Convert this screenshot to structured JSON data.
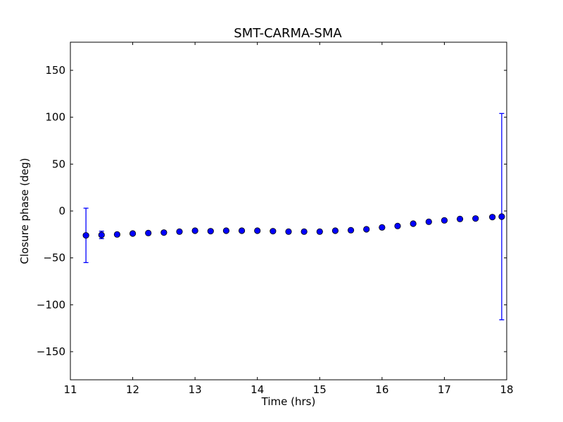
{
  "chart_data": {
    "type": "scatter",
    "title": "SMT-CARMA-SMA",
    "xlabel": "Time (hrs)",
    "ylabel": "Closure phase (deg)",
    "xlim": [
      11,
      18
    ],
    "ylim": [
      -180,
      180
    ],
    "xticks": [
      11,
      12,
      13,
      14,
      15,
      16,
      17,
      18
    ],
    "yticks": [
      -150,
      -100,
      -50,
      0,
      50,
      100,
      150
    ],
    "xtick_labels": [
      "11",
      "12",
      "13",
      "14",
      "15",
      "16",
      "17",
      "18"
    ],
    "ytick_labels": [
      "−150",
      "−100",
      "−50",
      "0",
      "50",
      "100",
      "150"
    ],
    "grid": false,
    "colors": {
      "marker": "#0000ff",
      "errorbar": "#0000ff"
    },
    "series": [
      {
        "x": [
          11.25,
          11.5,
          11.75,
          12.0,
          12.25,
          12.5,
          12.75,
          13.0,
          13.25,
          13.5,
          13.75,
          14.0,
          14.25,
          14.5,
          14.75,
          15.0,
          15.25,
          15.5,
          15.75,
          16.0,
          16.25,
          16.5,
          16.75,
          17.0,
          17.25,
          17.5,
          17.77,
          17.92
        ],
        "y": [
          -26,
          -25.5,
          -25,
          -24,
          -23.5,
          -23,
          -22,
          -21,
          -21.5,
          -21,
          -21,
          -21,
          -21.5,
          -22,
          -22,
          -22,
          -21,
          -20.5,
          -19.5,
          -17.5,
          -16,
          -13.5,
          -11.5,
          -10,
          -8.5,
          -8,
          -6.5,
          -6
        ],
        "yerr": [
          29,
          4,
          1.5,
          1,
          1,
          1,
          1,
          1,
          1,
          1,
          1,
          1,
          1,
          1,
          1,
          1,
          1,
          1,
          1,
          1,
          1,
          1,
          1,
          1,
          1,
          1,
          1,
          110
        ]
      }
    ]
  }
}
